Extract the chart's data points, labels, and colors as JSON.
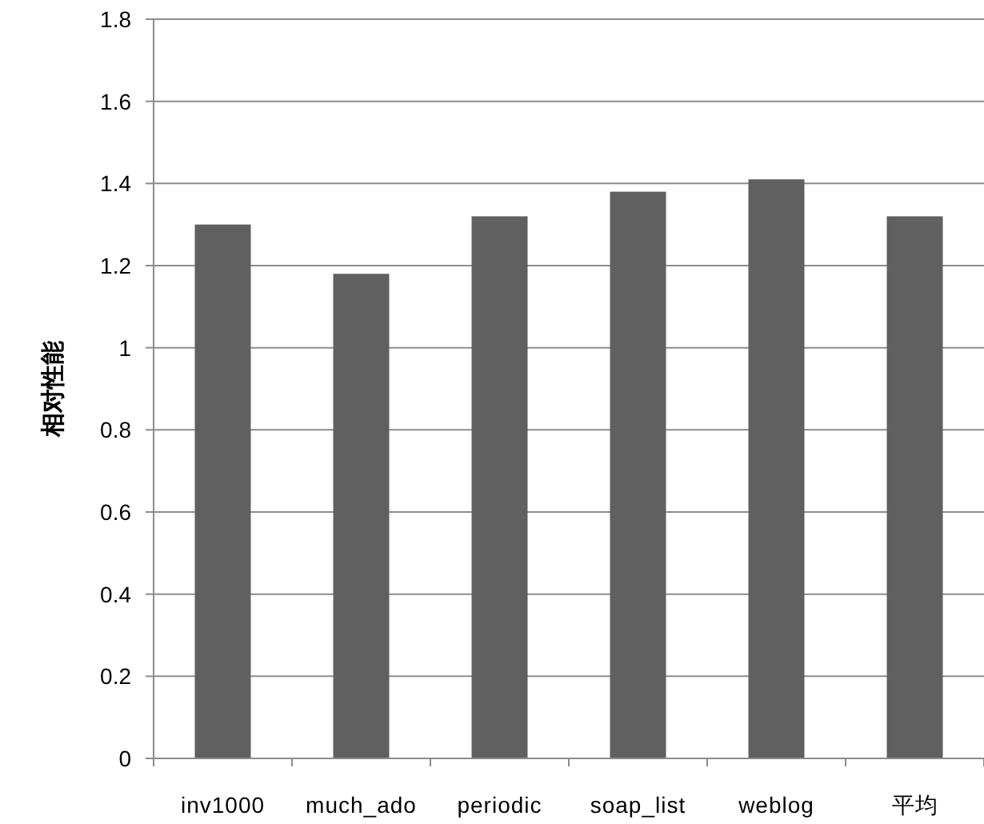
{
  "chart_data": {
    "type": "bar",
    "ylabel": "相对性能",
    "categories": [
      "inv1000",
      "much_ado",
      "periodic",
      "soap_list",
      "weblog",
      "平均"
    ],
    "values": [
      1.3,
      1.18,
      1.32,
      1.38,
      1.41,
      1.32
    ],
    "color": "#606060",
    "ylim": [
      0,
      1.8
    ],
    "yticks": [
      0,
      0.2,
      0.4,
      0.6,
      0.8,
      1,
      1.2,
      1.4,
      1.6,
      1.8
    ],
    "grid": "y"
  }
}
